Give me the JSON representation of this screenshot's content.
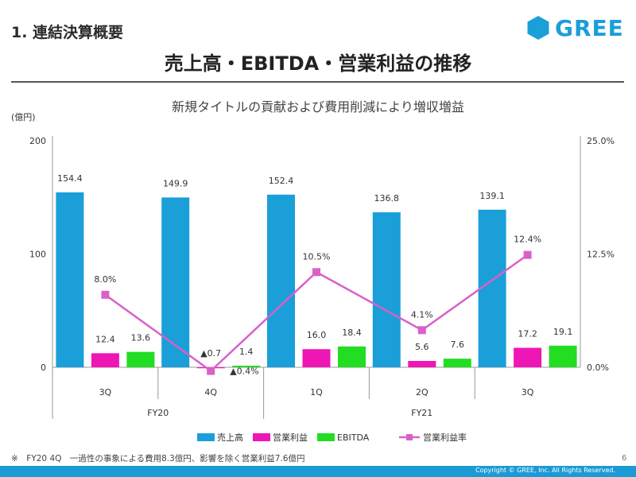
{
  "header": {
    "section_title": "1. 連結決算概要",
    "logo_text": "GREE",
    "main_title": "売上高・EBITDA・営業利益の推移",
    "subtitle": "新規タイトルの貢献および費用削減により増収増益"
  },
  "colors": {
    "revenue": "#1a9fd9",
    "operating_profit": "#ee16b5",
    "ebitda": "#22dd22",
    "margin": "#d960c9",
    "brand": "#1a9fd9"
  },
  "chart_data": {
    "type": "bar",
    "unit_label": "(億円)",
    "categories": [
      "3Q",
      "4Q",
      "1Q",
      "2Q",
      "3Q"
    ],
    "groups": [
      {
        "label": "FY20",
        "categories": [
          "3Q",
          "4Q"
        ]
      },
      {
        "label": "FY21",
        "categories": [
          "1Q",
          "2Q",
          "3Q"
        ]
      }
    ],
    "series": [
      {
        "name": "売上高",
        "kind": "bar",
        "values": [
          154.4,
          149.9,
          152.4,
          136.8,
          139.1
        ],
        "labels": [
          "154.4",
          "149.9",
          "152.4",
          "136.8",
          "139.1"
        ]
      },
      {
        "name": "営業利益",
        "kind": "bar",
        "values": [
          12.4,
          -0.7,
          16.0,
          5.6,
          17.2
        ],
        "labels": [
          "12.4",
          "▲0.7",
          "16.0",
          "5.6",
          "17.2"
        ]
      },
      {
        "name": "EBITDA",
        "kind": "bar",
        "values": [
          13.6,
          1.4,
          18.4,
          7.6,
          19.1
        ],
        "labels": [
          "13.6",
          "1.4",
          "18.4",
          "7.6",
          "19.1"
        ]
      },
      {
        "name": "営業利益率",
        "kind": "line",
        "axis": "right",
        "values": [
          8.0,
          -0.4,
          10.5,
          4.1,
          12.4
        ],
        "labels": [
          "8.0%",
          "▲0.4%",
          "10.5%",
          "4.1%",
          "12.4%"
        ]
      }
    ],
    "y_left": {
      "ylim": [
        0,
        200
      ],
      "ticks": [
        0,
        100,
        200
      ],
      "tick_labels": [
        "0",
        "100",
        "200"
      ]
    },
    "y_right": {
      "ylim": [
        0,
        25
      ],
      "ticks": [
        0,
        12.5,
        25
      ],
      "tick_labels": [
        "0.0%",
        "12.5%",
        "25.0%"
      ]
    },
    "legend_position": "bottom",
    "grid": false
  },
  "footnote": "※　FY20 4Q　一過性の事象による費用8.3億円、影響を除く営業利益7.6億円",
  "page_number": "6",
  "copyright": "Copyright © GREE, Inc. All Rights Reserved."
}
